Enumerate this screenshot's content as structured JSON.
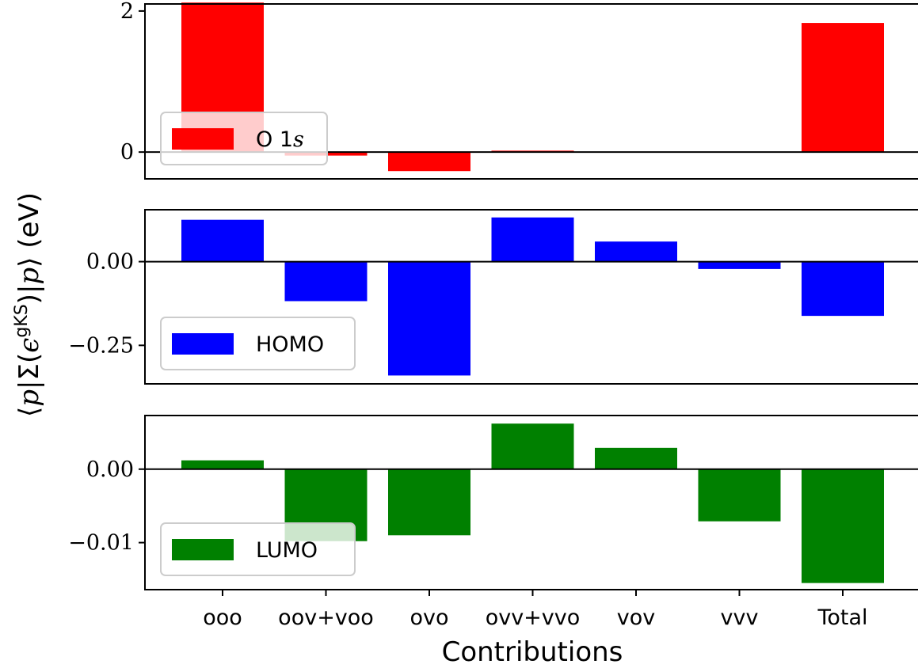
{
  "chart_data": {
    "type": "bar",
    "categories": [
      "ooo",
      "oov+voo",
      "ovo",
      "ovv+vvo",
      "vov",
      "vvv",
      "Total"
    ],
    "xlabel": "Contributions",
    "ylabel": "⟨p|Σ(ϵ^gKS)|p⟩ (eV)",
    "ylabel_parts": {
      "open": "⟨",
      "p1": "p",
      "bar1": "|",
      "sigma": "Σ(",
      "eps": "ϵ",
      "sup": "gKS",
      "close_paren": ")",
      "bar2": "|",
      "p2": "p",
      "rangle": "⟩",
      "unit": " (eV)"
    },
    "panels": [
      {
        "legend": "O 1s",
        "legend_main": "O 1",
        "legend_italic": "s",
        "color": "#ff0000",
        "ylim": [
          -0.38,
          2.1
        ],
        "yticks": [
          0,
          2
        ],
        "ytick_labels": [
          "0",
          "2"
        ],
        "values": [
          2.12,
          -0.05,
          -0.27,
          0.02,
          0.0,
          0.0,
          1.83
        ]
      },
      {
        "legend": "HOMO",
        "color": "#0000ff",
        "ylim": [
          -0.365,
          0.155
        ],
        "yticks": [
          0.0,
          -0.25
        ],
        "ytick_labels": [
          "0.00",
          "−0.25"
        ],
        "values": [
          0.125,
          -0.118,
          -0.34,
          0.132,
          0.06,
          -0.022,
          -0.162
        ]
      },
      {
        "legend": "LUMO",
        "color": "#008000",
        "ylim": [
          -0.0164,
          0.0073
        ],
        "yticks": [
          0.0,
          -0.01
        ],
        "ytick_labels": [
          "0.00",
          "−0.01"
        ],
        "values": [
          0.0012,
          -0.0098,
          -0.009,
          0.0062,
          0.0029,
          -0.0071,
          -0.0155
        ]
      }
    ]
  }
}
